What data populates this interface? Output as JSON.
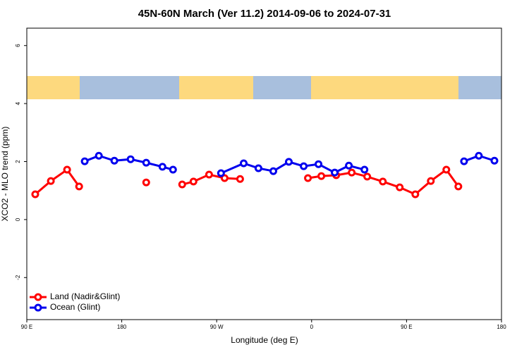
{
  "chart_data": {
    "type": "line",
    "title": "45N-60N March (Ver 11.2)   2014-09-06 to 2024-07-31",
    "xlabel": "Longitude (deg E)",
    "ylabel": "XCO2 - MLO trend (ppm)",
    "xlim": [
      90,
      540
    ],
    "ylim": [
      -3.45,
      6.6
    ],
    "xticks": [
      {
        "value": 90,
        "label": "90 E"
      },
      180,
      {
        "value": 270,
        "label": "90 W"
      },
      {
        "value": 360,
        "label": "0"
      },
      {
        "value": 450,
        "label": "90 E"
      },
      {
        "value": 540,
        "label": "180"
      }
    ],
    "yticks": [
      -2,
      0,
      2,
      4,
      6
    ],
    "legend": "bottom-left",
    "series": [
      {
        "name": "Land (Nadir&Glint)",
        "color": "#ff0000",
        "x": [
          98,
          112.8,
          128.2,
          139.6,
          null,
          203.2,
          null,
          237.3,
          248,
          262.8,
          277.5,
          292.2,
          null,
          356.5,
          369.2,
          383.3,
          398,
          412.7,
          427.5,
          443.5,
          458.3,
          473,
          487.7,
          499.1
        ],
        "values": [
          0.87,
          1.33,
          1.72,
          1.14,
          null,
          1.28,
          null,
          1.21,
          1.31,
          1.55,
          1.43,
          1.4,
          null,
          1.43,
          1.5,
          1.53,
          1.62,
          1.48,
          1.31,
          1.11,
          0.87,
          1.33,
          1.72,
          1.14
        ]
      },
      {
        "name": "Ocean (Glint)",
        "color": "#0000ee",
        "x": [
          144.9,
          158.3,
          173,
          188.4,
          203.2,
          218.6,
          228.6,
          null,
          274.1,
          295.6,
          309.6,
          323.7,
          338.4,
          352.5,
          366.5,
          381.9,
          395.3,
          410.1,
          null,
          504.5,
          518.5,
          533.3
        ],
        "values": [
          2.01,
          2.2,
          2.03,
          2.08,
          1.96,
          1.82,
          1.72,
          null,
          1.6,
          1.94,
          1.77,
          1.67,
          1.99,
          1.84,
          1.91,
          1.62,
          1.86,
          1.72,
          null,
          2.01,
          2.2,
          2.03
        ]
      }
    ]
  }
}
